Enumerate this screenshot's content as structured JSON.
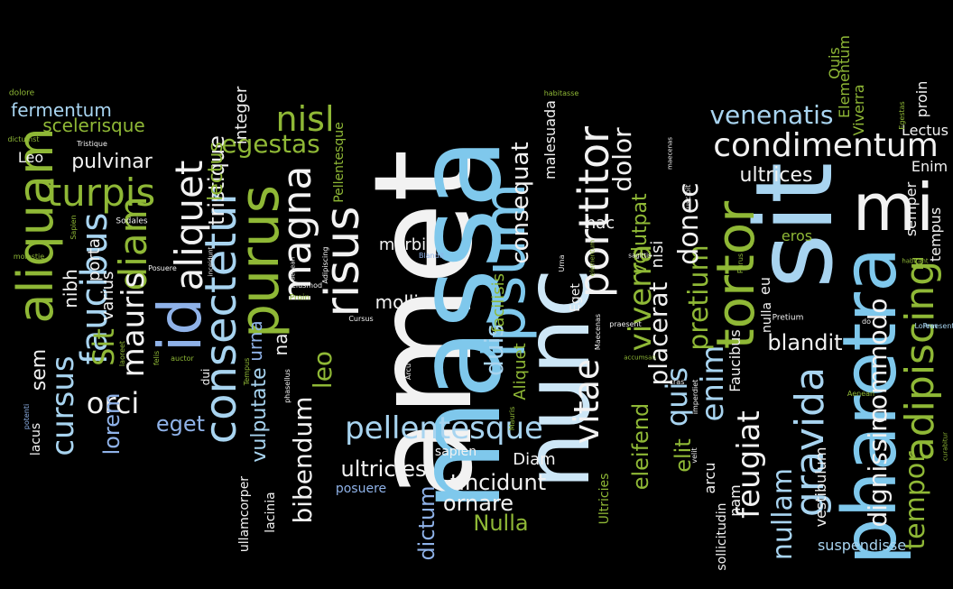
{
  "palette": {
    "background": "#000000",
    "white": "#f2f2f2",
    "light_blue": "#a8d4f0",
    "sky_blue": "#7fc8ec",
    "periwinkle": "#8fb2e8",
    "green": "#8fb836",
    "lime": "#9acd32",
    "pale_blue": "#cde7f7"
  },
  "words": [
    {
      "text": "amet",
      "size": 150,
      "rot": -90,
      "color": "#f2f2f2"
    },
    {
      "text": "massa",
      "size": 128,
      "rot": -90,
      "color": "#7fc8ec"
    },
    {
      "text": "sit",
      "size": 118,
      "rot": -90,
      "color": "#a8d4f0"
    },
    {
      "text": "nunc",
      "size": 100,
      "rot": -90,
      "color": "#cde7f7"
    },
    {
      "text": "pharetra",
      "size": 82,
      "rot": -90,
      "color": "#7fc8ec"
    },
    {
      "text": "mi",
      "size": 72,
      "rot": 0,
      "color": "#f2f2f2"
    },
    {
      "text": "id",
      "size": 66,
      "rot": -90,
      "color": "#8fb2e8"
    },
    {
      "text": "ipsum",
      "size": 64,
      "rot": -90,
      "color": "#7fc8ec"
    },
    {
      "text": "purus",
      "size": 60,
      "rot": -90,
      "color": "#8fb836"
    },
    {
      "text": "tortor",
      "size": 58,
      "rot": -90,
      "color": "#8fb836"
    },
    {
      "text": "aliquam",
      "size": 54,
      "rot": -90,
      "color": "#8fb836"
    },
    {
      "text": "risus",
      "size": 52,
      "rot": -90,
      "color": "#f2f2f2"
    },
    {
      "text": "consectetur",
      "size": 48,
      "rot": -90,
      "color": "#a8d4f0"
    },
    {
      "text": "porttitor",
      "size": 46,
      "rot": -90,
      "color": "#f2f2f2"
    },
    {
      "text": "gravida",
      "size": 44,
      "rot": -90,
      "color": "#a8d4f0"
    },
    {
      "text": "adipiscing",
      "size": 44,
      "rot": -90,
      "color": "#8fb836"
    },
    {
      "text": "magna",
      "size": 44,
      "rot": -90,
      "color": "#f2f2f2"
    },
    {
      "text": "aliquet",
      "size": 42,
      "rot": -90,
      "color": "#f2f2f2"
    },
    {
      "text": "diam",
      "size": 42,
      "rot": -90,
      "color": "#8fb836"
    },
    {
      "text": "turpis",
      "size": 42,
      "rot": 0,
      "color": "#8fb836"
    },
    {
      "text": "faucibus",
      "size": 40,
      "rot": -90,
      "color": "#a8d4f0"
    },
    {
      "text": "condimentum",
      "size": 36,
      "rot": 0,
      "color": "#f2f2f2"
    },
    {
      "text": "nisl",
      "size": 38,
      "rot": 0,
      "color": "#8fb836"
    },
    {
      "text": "vitae",
      "size": 38,
      "rot": -90,
      "color": "#f2f2f2"
    },
    {
      "text": "pellentesque",
      "size": 34,
      "rot": 0,
      "color": "#a8d4f0"
    },
    {
      "text": "viverra",
      "size": 34,
      "rot": -90,
      "color": "#8fb836"
    },
    {
      "text": "enim",
      "size": 34,
      "rot": -90,
      "color": "#a8d4f0"
    },
    {
      "text": "cursus",
      "size": 34,
      "rot": -90,
      "color": "#a8d4f0"
    },
    {
      "text": "mauris",
      "size": 34,
      "rot": -90,
      "color": "#f2f2f2"
    },
    {
      "text": "feugiat",
      "size": 34,
      "rot": -90,
      "color": "#f2f2f2"
    },
    {
      "text": "Sit",
      "size": 32,
      "rot": -90,
      "color": "#8fb836"
    },
    {
      "text": "orci",
      "size": 32,
      "rot": 0,
      "color": "#f2f2f2"
    },
    {
      "text": "quis",
      "size": 32,
      "rot": -90,
      "color": "#a8d4f0"
    },
    {
      "text": "pretium",
      "size": 30,
      "rot": -90,
      "color": "#8fb836"
    },
    {
      "text": "nullam",
      "size": 30,
      "rot": -90,
      "color": "#a8d4f0"
    },
    {
      "text": "donec",
      "size": 30,
      "rot": -90,
      "color": "#f2f2f2"
    },
    {
      "text": "tempor",
      "size": 30,
      "rot": -90,
      "color": "#8fb836"
    },
    {
      "text": "venenatis",
      "size": 28,
      "rot": 0,
      "color": "#a8d4f0"
    },
    {
      "text": "egestas",
      "size": 28,
      "rot": 0,
      "color": "#8fb836"
    },
    {
      "text": "dolor",
      "size": 28,
      "rot": -90,
      "color": "#f2f2f2"
    },
    {
      "text": "duis",
      "size": 28,
      "rot": -90,
      "color": "#a8d4f0"
    },
    {
      "text": "dignissim",
      "size": 28,
      "rot": -90,
      "color": "#f2f2f2"
    },
    {
      "text": "commodo",
      "size": 28,
      "rot": -90,
      "color": "#f2f2f2"
    },
    {
      "text": "placerat",
      "size": 28,
      "rot": -90,
      "color": "#f2f2f2"
    },
    {
      "text": "leo",
      "size": 28,
      "rot": -90,
      "color": "#8fb836"
    },
    {
      "text": "bibendum",
      "size": 28,
      "rot": -90,
      "color": "#f2f2f2"
    },
    {
      "text": "consequat",
      "size": 26,
      "rot": -90,
      "color": "#f2f2f2"
    },
    {
      "text": "tincidunt",
      "size": 24,
      "rot": 0,
      "color": "#f2f2f2"
    },
    {
      "text": "blandit",
      "size": 24,
      "rot": 0,
      "color": "#f2f2f2"
    },
    {
      "text": "ultricies",
      "size": 24,
      "rot": 0,
      "color": "#f2f2f2"
    },
    {
      "text": "ornare",
      "size": 24,
      "rot": 0,
      "color": "#f2f2f2"
    },
    {
      "text": "lorem",
      "size": 24,
      "rot": -90,
      "color": "#8fb2e8"
    },
    {
      "text": "eget",
      "size": 24,
      "rot": 0,
      "color": "#8fb2e8"
    },
    {
      "text": "eleifend",
      "size": 24,
      "rot": -90,
      "color": "#8fb836"
    },
    {
      "text": "elit",
      "size": 24,
      "rot": -90,
      "color": "#8fb836"
    },
    {
      "text": "tristique",
      "size": 24,
      "rot": -90,
      "color": "#f2f2f2"
    },
    {
      "text": "dictum",
      "size": 24,
      "rot": -90,
      "color": "#8fb2e8"
    },
    {
      "text": "Nulla",
      "size": 24,
      "rot": 0,
      "color": "#8fb836"
    },
    {
      "text": "lectus",
      "size": 22,
      "rot": -90,
      "color": "#8fb836"
    },
    {
      "text": "pulvinar",
      "size": 22,
      "rot": 0,
      "color": "#f2f2f2"
    },
    {
      "text": "ultrices",
      "size": 22,
      "rot": 0,
      "color": "#f2f2f2"
    },
    {
      "text": "volutpat",
      "size": 22,
      "rot": -90,
      "color": "#8fb836"
    },
    {
      "text": "vulputate",
      "size": 22,
      "rot": -90,
      "color": "#a8d4f0"
    },
    {
      "text": "sem",
      "size": 22,
      "rot": -90,
      "color": "#f2f2f2"
    },
    {
      "text": "nibh",
      "size": 20,
      "rot": -90,
      "color": "#f2f2f2"
    },
    {
      "text": "urna",
      "size": 20,
      "rot": -90,
      "color": "#8fb2e8"
    },
    {
      "text": "na",
      "size": 20,
      "rot": -90,
      "color": "#f2f2f2"
    },
    {
      "text": "mollis",
      "size": 20,
      "rot": 0,
      "color": "#f2f2f2"
    },
    {
      "text": "fermentum",
      "size": 20,
      "rot": 0,
      "color": "#a8d4f0"
    },
    {
      "text": "scelerisque",
      "size": 20,
      "rot": 0,
      "color": "#8fb836"
    },
    {
      "text": "porta",
      "size": 18,
      "rot": -90,
      "color": "#f2f2f2"
    },
    {
      "text": "varius",
      "size": 18,
      "rot": -90,
      "color": "#f2f2f2"
    },
    {
      "text": "integer",
      "size": 18,
      "rot": -90,
      "color": "#f2f2f2"
    },
    {
      "text": "hac",
      "size": 18,
      "rot": 0,
      "color": "#f2f2f2"
    },
    {
      "text": "nisi",
      "size": 18,
      "rot": -90,
      "color": "#f2f2f2"
    },
    {
      "text": "morbi",
      "size": 18,
      "rot": 0,
      "color": "#f2f2f2"
    },
    {
      "text": "facilisis",
      "size": 18,
      "rot": -90,
      "color": "#8fb836"
    },
    {
      "text": "Aliquet",
      "size": 18,
      "rot": -90,
      "color": "#8fb836"
    },
    {
      "text": "Diam",
      "size": 18,
      "rot": 0,
      "color": "#f2f2f2"
    },
    {
      "text": "malesuada",
      "size": 16,
      "rot": -90,
      "color": "#f2f2f2"
    },
    {
      "text": "Faucibus",
      "size": 16,
      "rot": -90,
      "color": "#f2f2f2"
    },
    {
      "text": "arcu",
      "size": 16,
      "rot": -90,
      "color": "#f2f2f2"
    },
    {
      "text": "nam",
      "size": 16,
      "rot": -90,
      "color": "#f2f2f2"
    },
    {
      "text": "vestibulum",
      "size": 16,
      "rot": -90,
      "color": "#f2f2f2"
    },
    {
      "text": "Elementum",
      "size": 16,
      "rot": -90,
      "color": "#8fb836"
    },
    {
      "text": "Viverra",
      "size": 16,
      "rot": -90,
      "color": "#8fb836"
    },
    {
      "text": "proin",
      "size": 16,
      "rot": -90,
      "color": "#f2f2f2"
    },
    {
      "text": "tempus",
      "size": 16,
      "rot": -90,
      "color": "#f2f2f2"
    },
    {
      "text": "semper",
      "size": 16,
      "rot": -90,
      "color": "#f2f2f2"
    },
    {
      "text": "Lectus",
      "size": 16,
      "rot": 0,
      "color": "#f2f2f2"
    },
    {
      "text": "Enim",
      "size": 16,
      "rot": 0,
      "color": "#f2f2f2"
    },
    {
      "text": "Quis",
      "size": 16,
      "rot": -90,
      "color": "#8fb836"
    },
    {
      "text": "eros",
      "size": 16,
      "rot": 0,
      "color": "#8fb836"
    },
    {
      "text": "Id",
      "size": 16,
      "rot": -90,
      "color": "#8fb836"
    },
    {
      "text": "eu",
      "size": 16,
      "rot": -90,
      "color": "#f2f2f2"
    },
    {
      "text": "nulla",
      "size": 14,
      "rot": -90,
      "color": "#f2f2f2"
    },
    {
      "text": "sollicitudin",
      "size": 14,
      "rot": -90,
      "color": "#f2f2f2"
    },
    {
      "text": "suspendisse",
      "size": 16,
      "rot": 0,
      "color": "#a8d4f0"
    },
    {
      "text": "ullamcorper",
      "size": 14,
      "rot": -90,
      "color": "#f2f2f2"
    },
    {
      "text": "lacinia",
      "size": 14,
      "rot": -90,
      "color": "#f2f2f2"
    },
    {
      "text": "lacus",
      "size": 14,
      "rot": -90,
      "color": "#f2f2f2"
    },
    {
      "text": "Leo",
      "size": 16,
      "rot": 0,
      "color": "#f2f2f2"
    },
    {
      "text": "sapien",
      "size": 14,
      "rot": 0,
      "color": "#f2f2f2"
    },
    {
      "text": "posuere",
      "size": 14,
      "rot": 0,
      "color": "#8fb2e8"
    },
    {
      "text": "Pellentesque",
      "size": 14,
      "rot": -90,
      "color": "#8fb836"
    },
    {
      "text": "Eget",
      "size": 14,
      "rot": -90,
      "color": "#f2f2f2"
    },
    {
      "text": "Ultricies",
      "size": 14,
      "rot": -90,
      "color": "#8fb836"
    },
    {
      "text": "Pretium",
      "size": 9,
      "rot": 0,
      "color": "#f2f2f2"
    },
    {
      "text": "dui",
      "size": 12,
      "rot": -90,
      "color": "#f2f2f2"
    },
    {
      "text": "dolore",
      "size": 9,
      "rot": 0,
      "color": "#8fb836"
    },
    {
      "text": "dictumst",
      "size": 8,
      "rot": 0,
      "color": "#8fb836"
    },
    {
      "text": "Tristique",
      "size": 8,
      "rot": 0,
      "color": "#f2f2f2"
    },
    {
      "text": "Sodales",
      "size": 9,
      "rot": 0,
      "color": "#f2f2f2"
    },
    {
      "text": "Sapien",
      "size": 8,
      "rot": -90,
      "color": "#8fb836"
    },
    {
      "text": "molestie",
      "size": 8,
      "rot": 0,
      "color": "#8fb836"
    },
    {
      "text": "laoreet",
      "size": 8,
      "rot": -90,
      "color": "#8fb836"
    },
    {
      "text": "Posuere",
      "size": 8,
      "rot": 0,
      "color": "#f2f2f2"
    },
    {
      "text": "inceidunt",
      "size": 7,
      "rot": -90,
      "color": "#f2f2f2"
    },
    {
      "text": "felis",
      "size": 8,
      "rot": -90,
      "color": "#8fb836"
    },
    {
      "text": "auctor",
      "size": 8,
      "rot": 0,
      "color": "#8fb836"
    },
    {
      "text": "potenti",
      "size": 8,
      "rot": -90,
      "color": "#8fb2e8"
    },
    {
      "text": "Tempus",
      "size": 8,
      "rot": -90,
      "color": "#8fb836"
    },
    {
      "text": "aenean",
      "size": 7,
      "rot": -90,
      "color": "#f2f2f2"
    },
    {
      "text": "eiusmod",
      "size": 8,
      "rot": 0,
      "color": "#f2f2f2"
    },
    {
      "text": "Adipiscing",
      "size": 8,
      "rot": -90,
      "color": "#f2f2f2"
    },
    {
      "text": "Proin",
      "size": 9,
      "rot": 0,
      "color": "#8fb836"
    },
    {
      "text": "phasellus",
      "size": 8,
      "rot": -90,
      "color": "#f2f2f2"
    },
    {
      "text": "Cursus",
      "size": 8,
      "rot": 0,
      "color": "#f2f2f2"
    },
    {
      "text": "Arcu",
      "size": 8,
      "rot": -90,
      "color": "#f2f2f2"
    },
    {
      "text": "Blandit",
      "size": 8,
      "rot": 0,
      "color": "#8fb2e8"
    },
    {
      "text": "Mauris",
      "size": 8,
      "rot": -90,
      "color": "#8fb836"
    },
    {
      "text": "habitasse",
      "size": 8,
      "rot": 0,
      "color": "#8fb836"
    },
    {
      "text": "Urna",
      "size": 8,
      "rot": -90,
      "color": "#f2f2f2"
    },
    {
      "text": "elementum",
      "size": 7,
      "rot": -90,
      "color": "#8fb836"
    },
    {
      "text": "Maecenas",
      "size": 8,
      "rot": -90,
      "color": "#f2f2f2"
    },
    {
      "text": "accumsan",
      "size": 7,
      "rot": 0,
      "color": "#8fb836"
    },
    {
      "text": "praesent",
      "size": 8,
      "rot": 0,
      "color": "#f2f2f2"
    },
    {
      "text": "sagittis",
      "size": 7,
      "rot": 0,
      "color": "#f2f2f2"
    },
    {
      "text": "cras",
      "size": 8,
      "rot": 0,
      "color": "#f2f2f2"
    },
    {
      "text": "maecenas",
      "size": 7,
      "rot": -90,
      "color": "#f2f2f2"
    },
    {
      "text": "suscipit",
      "size": 8,
      "rot": -90,
      "color": "#f2f2f2"
    },
    {
      "text": "imperdiet",
      "size": 8,
      "rot": -90,
      "color": "#f2f2f2"
    },
    {
      "text": "velit",
      "size": 8,
      "rot": -90,
      "color": "#f2f2f2"
    },
    {
      "text": "Purus",
      "size": 8,
      "rot": -90,
      "color": "#8fb836"
    },
    {
      "text": "do",
      "size": 8,
      "rot": 0,
      "color": "#f2f2f2"
    },
    {
      "text": "habitant",
      "size": 7,
      "rot": 0,
      "color": "#8fb836"
    },
    {
      "text": "Egestas",
      "size": 8,
      "rot": -90,
      "color": "#8fb836"
    },
    {
      "text": "Aenean",
      "size": 8,
      "rot": 0,
      "color": "#8fb836"
    },
    {
      "text": "Lorem",
      "size": 8,
      "rot": 0,
      "color": "#a8d4f0"
    },
    {
      "text": "Praesent",
      "size": 8,
      "rot": 0,
      "color": "#a8d4f0"
    },
    {
      "text": "curabitur",
      "size": 7,
      "rot": -90,
      "color": "#8fb836"
    }
  ]
}
